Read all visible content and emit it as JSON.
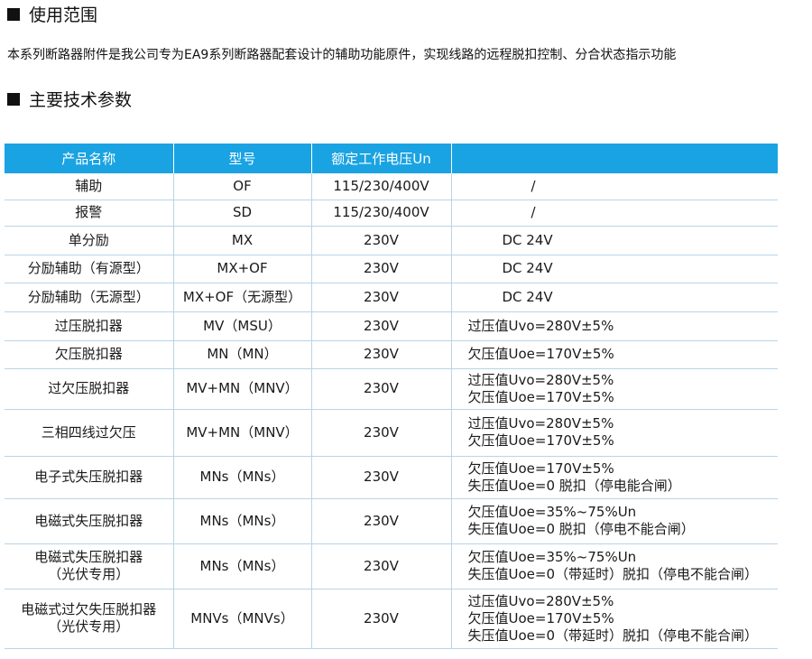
{
  "sections": {
    "usage_title": "使用范围",
    "usage_text": "本系列断路器附件是我公司专为EA9系列断路器配套设计的辅助功能原件，实现线路的远程脱扣控制、分合状态指示功能",
    "params_title": "主要技术参数"
  },
  "table": {
    "headers": [
      "产品名称",
      "型号",
      "额定工作电压Un",
      ""
    ],
    "rows": [
      {
        "name": [
          "辅助"
        ],
        "model": "OF",
        "voltage": "115/230/400V",
        "note": [
          "/"
        ]
      },
      {
        "name": [
          "报警"
        ],
        "model": "SD",
        "voltage": "115/230/400V",
        "note": [
          "/"
        ]
      },
      {
        "name": [
          "单分励"
        ],
        "model": "MX",
        "voltage": "230V",
        "note": [
          "DC 24V"
        ]
      },
      {
        "name": [
          "分励辅助（有源型）"
        ],
        "model": "MX+OF",
        "voltage": "230V",
        "note": [
          "DC 24V"
        ]
      },
      {
        "name": [
          "分励辅助（无源型）"
        ],
        "model": "MX+OF（无源型）",
        "voltage": "230V",
        "note": [
          "DC 24V"
        ]
      },
      {
        "name": [
          "过压脱扣器"
        ],
        "model": "MV（MSU）",
        "voltage": "230V",
        "note": [
          "过压值Uvo=280V±5%"
        ]
      },
      {
        "name": [
          "欠压脱扣器"
        ],
        "model": "MN（MN）",
        "voltage": "230V",
        "note": [
          "欠压值Uoe=170V±5%"
        ]
      },
      {
        "name": [
          "过欠压脱扣器"
        ],
        "model": "MV+MN（MNV）",
        "voltage": "230V",
        "note": [
          "过压值Uvo=280V±5%",
          "欠压值Uoe=170V±5%"
        ]
      },
      {
        "name": [
          "三相四线过欠压"
        ],
        "model": "MV+MN（MNV）",
        "voltage": "230V",
        "note": [
          "过压值Uvo=280V±5%",
          "欠压值Uoe=170V±5%"
        ]
      },
      {
        "name": [
          "电子式失压脱扣器"
        ],
        "model": "MNs（MNs）",
        "voltage": "230V",
        "note": [
          "欠压值Uoe=170V±5%",
          "失压值Uoe=0  脱扣（停电能合闸）"
        ]
      },
      {
        "name": [
          "电磁式失压脱扣器"
        ],
        "model": "MNs（MNs）",
        "voltage": "230V",
        "note": [
          "欠压值Uoe=35%~75%Un",
          "失压值Uoe=0  脱扣（停电不能合闸）"
        ]
      },
      {
        "name": [
          "电磁式失压脱扣器",
          "（光伏专用）"
        ],
        "model": "MNs（MNs）",
        "voltage": "230V",
        "note": [
          "欠压值Uoe=35%~75%Un",
          "失压值Uoe=0（带延时）脱扣（停电不能合闸）"
        ]
      },
      {
        "name": [
          "电磁式过欠失压脱扣器",
          "（光伏专用）"
        ],
        "model": "MNVs（MNVs）",
        "voltage": "230V",
        "note": [
          "过压值Uvo=280V±5%",
          "欠压值Uoe=170V±5%",
          "失压值Uoe=0（带延时）脱扣（停电不能合闸）"
        ]
      }
    ]
  }
}
